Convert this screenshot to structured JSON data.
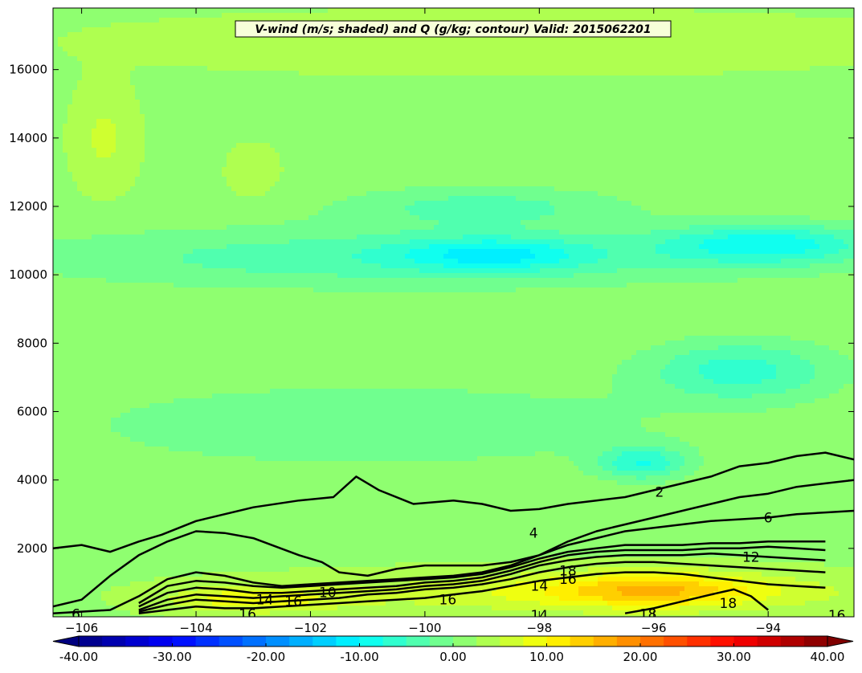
{
  "chart_data": {
    "type": "heatmap",
    "title": "V-wind (m/s; shaded) and Q (g/kg; contour) Valid: 2015062201",
    "xlabel": "",
    "ylabel": "",
    "xlim": [
      -106.5,
      -92.5
    ],
    "ylim": [
      0,
      17800
    ],
    "xticks": [
      -106,
      -104,
      -102,
      -100,
      -98,
      -96,
      -94
    ],
    "yticks": [
      2000,
      4000,
      6000,
      8000,
      10000,
      12000,
      14000,
      16000
    ],
    "grid": false,
    "shaded_field": {
      "name": "V-wind",
      "units": "m/s",
      "colormap": "jet",
      "levels_min": -40,
      "levels_max": 40,
      "level_step": 2.5,
      "background_value": 2,
      "features": [
        {
          "kind": "jet-core",
          "x_center": -94.0,
          "y_center": 10900,
          "x_half_width": 1.9,
          "y_half_width": 600,
          "value": -9
        },
        {
          "kind": "jet-core",
          "x_center": -98.8,
          "y_center": 10600,
          "x_half_width": 1.6,
          "y_half_width": 500,
          "value": -7
        },
        {
          "kind": "band",
          "x_center": -100.5,
          "y_center": 10500,
          "x_half_width": 6.5,
          "y_half_width": 900,
          "value": -5
        },
        {
          "kind": "band",
          "x_center": -99.0,
          "y_center": 12000,
          "x_half_width": 2.5,
          "y_half_width": 600,
          "value": -4
        },
        {
          "kind": "blob",
          "x_center": -94.5,
          "y_center": 7200,
          "x_half_width": 1.7,
          "y_half_width": 900,
          "value": -7
        },
        {
          "kind": "blob",
          "x_center": -96.2,
          "y_center": 4500,
          "x_half_width": 0.8,
          "y_half_width": 500,
          "value": -8
        },
        {
          "kind": "band",
          "x_center": -101.0,
          "y_center": 5600,
          "x_half_width": 5.0,
          "y_half_width": 1200,
          "value": -3
        },
        {
          "kind": "blob",
          "x_center": -105.6,
          "y_center": 14000,
          "x_half_width": 0.5,
          "y_half_width": 1400,
          "value": 6
        },
        {
          "kind": "blob",
          "x_center": -103.0,
          "y_center": 13000,
          "x_half_width": 0.4,
          "y_half_width": 700,
          "value": 5
        },
        {
          "kind": "band",
          "x_center": -98.5,
          "y_center": 16800,
          "x_half_width": 7.0,
          "y_half_width": 900,
          "value": 4
        },
        {
          "kind": "band",
          "x_center": -97.0,
          "y_center": 700,
          "x_half_width": 5.0,
          "y_half_width": 600,
          "value": 8
        },
        {
          "kind": "blob",
          "x_center": -96.0,
          "y_center": 800,
          "x_half_width": 1.8,
          "y_half_width": 500,
          "value": 12
        },
        {
          "kind": "blob",
          "x_center": -103.0,
          "y_center": 500,
          "x_half_width": 1.5,
          "y_half_width": 400,
          "value": 9
        }
      ]
    },
    "contour_field": {
      "name": "Q",
      "units": "g/kg",
      "color": "#000000",
      "series": [
        {
          "name": "2",
          "label": "2",
          "x": [
            -106.5,
            -106.0,
            -105.5,
            -105.0,
            -104.6,
            -104.0,
            -103.0,
            -102.2,
            -101.6,
            -101.2,
            -100.8,
            -100.2,
            -99.5,
            -99.0,
            -98.5,
            -98.0,
            -97.5,
            -97.0,
            -96.5,
            -96.0,
            -95.5,
            -95.0,
            -94.5,
            -94.0,
            -93.5,
            -93.0,
            -92.5
          ],
          "y": [
            2000,
            2100,
            1900,
            2200,
            2400,
            2800,
            3200,
            3400,
            3500,
            4100,
            3700,
            3300,
            3400,
            3300,
            3100,
            3150,
            3300,
            3400,
            3500,
            3700,
            3900,
            4100,
            4400,
            4500,
            4700,
            4800,
            4600
          ]
        },
        {
          "name": "4",
          "label": "4",
          "x": [
            -106.5,
            -106.0,
            -105.5,
            -105.0,
            -104.5,
            -104.0,
            -103.5,
            -103.0,
            -102.6,
            -102.2,
            -101.8,
            -101.5,
            -101.0,
            -100.5,
            -100.0,
            -99.5,
            -99.0,
            -98.5,
            -98.0,
            -97.5,
            -97.0,
            -96.5,
            -96.0,
            -95.5,
            -95.0,
            -94.5,
            -94.0,
            -93.5,
            -93.0,
            -92.5
          ],
          "y": [
            300,
            500,
            1200,
            1800,
            2200,
            2500,
            2450,
            2300,
            2050,
            1800,
            1600,
            1300,
            1200,
            1400,
            1500,
            1500,
            1500,
            1600,
            1800,
            2200,
            2500,
            2700,
            2900,
            3100,
            3300,
            3500,
            3600,
            3800,
            3900,
            4000
          ]
        },
        {
          "name": "6",
          "label": "6",
          "x": [
            -106.5,
            -106.0,
            -105.5,
            -105.0,
            -104.5,
            -104.0,
            -103.5,
            -103.0,
            -102.5,
            -102.0,
            -101.5,
            -101.0,
            -100.5,
            -100.0,
            -99.5,
            -99.0,
            -98.5,
            -98.0,
            -97.5,
            -97.0,
            -96.5,
            -96.0,
            -95.5,
            -95.0,
            -94.5,
            -94.0,
            -93.5,
            -93.0,
            -92.5
          ],
          "y": [
            100,
            150,
            200,
            600,
            1100,
            1300,
            1200,
            1000,
            900,
            950,
            1000,
            1050,
            1100,
            1150,
            1200,
            1300,
            1500,
            1800,
            2100,
            2300,
            2500,
            2600,
            2700,
            2800,
            2850,
            2900,
            3000,
            3050,
            3100
          ]
        },
        {
          "name": "8",
          "label": "",
          "x": [
            -105.0,
            -104.5,
            -104.0,
            -103.5,
            -103.0,
            -102.5,
            -102.0,
            -101.5,
            -101.0,
            -100.5,
            -100.0,
            -99.5,
            -99.0,
            -98.5,
            -98.0,
            -97.5,
            -97.0,
            -96.5,
            -96.0,
            -95.5,
            -95.0,
            -94.5,
            -94.0,
            -93.5,
            -93.0
          ],
          "y": [
            400,
            900,
            1050,
            1000,
            900,
            850,
            900,
            950,
            1000,
            1050,
            1100,
            1150,
            1250,
            1450,
            1700,
            1900,
            2000,
            2100,
            2100,
            2100,
            2150,
            2150,
            2200,
            2200,
            2200
          ]
        },
        {
          "name": "10",
          "label": "10",
          "x": [
            -105.0,
            -104.5,
            -104.0,
            -103.5,
            -103.0,
            -102.5,
            -102.0,
            -101.5,
            -101.0,
            -100.5,
            -100.0,
            -99.5,
            -99.0,
            -98.5,
            -98.0,
            -97.5,
            -97.0,
            -96.5,
            -96.0,
            -95.5,
            -95.0,
            -94.5,
            -94.0,
            -93.5,
            -93.0
          ],
          "y": [
            300,
            700,
            850,
            800,
            700,
            700,
            750,
            800,
            850,
            900,
            1000,
            1050,
            1150,
            1350,
            1600,
            1800,
            1900,
            1950,
            1950,
            1950,
            2000,
            2000,
            2050,
            2000,
            1950
          ]
        },
        {
          "name": "12",
          "label": "12",
          "x": [
            -105.0,
            -104.5,
            -104.0,
            -103.5,
            -103.0,
            -102.5,
            -102.0,
            -101.5,
            -101.0,
            -100.5,
            -100.0,
            -99.5,
            -99.0,
            -98.5,
            -98.0,
            -97.5,
            -97.0,
            -96.5,
            -96.0,
            -95.5,
            -95.0,
            -94.5,
            -94.0,
            -93.5,
            -93.0
          ],
          "y": [
            200,
            500,
            650,
            600,
            550,
            600,
            650,
            700,
            750,
            800,
            900,
            950,
            1050,
            1250,
            1500,
            1650,
            1750,
            1800,
            1800,
            1800,
            1850,
            1800,
            1750,
            1700,
            1650
          ]
        },
        {
          "name": "14",
          "label": "14",
          "x": [
            -105.0,
            -104.5,
            -104.0,
            -103.5,
            -103.0,
            -102.5,
            -102.0,
            -101.5,
            -101.0,
            -100.5,
            -100.0,
            -99.5,
            -99.0,
            -98.5,
            -98.0,
            -97.5,
            -97.0,
            -96.5,
            -96.0,
            -95.5,
            -95.0,
            -94.5,
            -94.0,
            -93.5,
            -93.0
          ],
          "y": [
            150,
            350,
            500,
            450,
            400,
            450,
            500,
            550,
            650,
            700,
            800,
            850,
            950,
            1100,
            1300,
            1450,
            1550,
            1600,
            1600,
            1550,
            1500,
            1450,
            1400,
            1350,
            1300
          ]
        },
        {
          "name": "16",
          "label": "16",
          "x": [
            -105.0,
            -104.5,
            -104.0,
            -103.5,
            -103.0,
            -102.5,
            -102.0,
            -101.5,
            -101.0,
            -100.5,
            -100.0,
            -99.5,
            -99.0,
            -98.5,
            -98.0,
            -97.5,
            -97.0,
            -96.5,
            -96.0,
            -95.5,
            -95.0,
            -94.5,
            -94.0,
            -93.5,
            -93.0
          ],
          "y": [
            100,
            200,
            300,
            250,
            250,
            300,
            350,
            400,
            450,
            500,
            550,
            650,
            750,
            900,
            1050,
            1150,
            1250,
            1300,
            1300,
            1250,
            1150,
            1050,
            950,
            900,
            850
          ]
        },
        {
          "name": "18",
          "label": "18",
          "x": [
            -96.5,
            -96.0,
            -95.5,
            -95.0,
            -94.6,
            -94.3,
            -94.0
          ],
          "y": [
            100,
            250,
            450,
            650,
            800,
            600,
            200
          ]
        }
      ],
      "inline_labels": [
        {
          "text": "2",
          "x": -95.9,
          "y": 3650
        },
        {
          "text": "4",
          "x": -98.1,
          "y": 2450
        },
        {
          "text": "6",
          "x": -94.0,
          "y": 2900
        },
        {
          "text": "6",
          "x": -106.1,
          "y": 80
        },
        {
          "text": "10",
          "x": -101.7,
          "y": 720
        },
        {
          "text": "12",
          "x": -94.3,
          "y": 1750
        },
        {
          "text": "14",
          "x": -102.8,
          "y": 500
        },
        {
          "text": "14",
          "x": -98.0,
          "y": 900
        },
        {
          "text": "14",
          "x": -98.0,
          "y": 50
        },
        {
          "text": "16",
          "x": -102.3,
          "y": 460
        },
        {
          "text": "16",
          "x": -103.1,
          "y": 80
        },
        {
          "text": "16",
          "x": -99.6,
          "y": 500
        },
        {
          "text": "16",
          "x": -97.5,
          "y": 1100
        },
        {
          "text": "16",
          "x": -92.8,
          "y": 50
        },
        {
          "text": "18",
          "x": -96.1,
          "y": 80
        },
        {
          "text": "18",
          "x": -94.7,
          "y": 400
        },
        {
          "text": "18",
          "x": -97.5,
          "y": 1350
        }
      ]
    },
    "colorbar": {
      "orientation": "horizontal",
      "min": -40,
      "max": 40,
      "ticks": [
        "-40.00",
        "-30.00",
        "-20.00",
        "-10.00",
        "0.00",
        "10.00",
        "20.00",
        "30.00",
        "40.00"
      ],
      "extend": "both"
    }
  }
}
